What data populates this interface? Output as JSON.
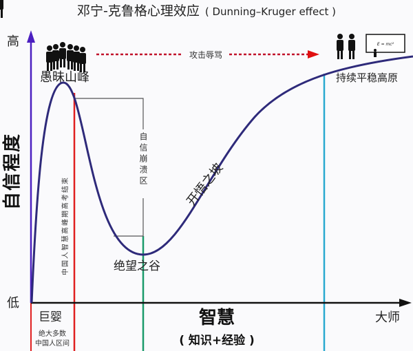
{
  "title": "邓宁-克鲁格心理效应",
  "title_en": "( Dunning–Kruger effect )",
  "y_axis": {
    "label": "自信程度",
    "high": "高",
    "low": "低"
  },
  "x_axis": {
    "label": "智慧",
    "sublabel": "( 知识+经验 )",
    "start": "巨婴",
    "end": "大师"
  },
  "stages": {
    "peak": "愚昧山峰",
    "valley": "绝望之谷",
    "slope": "开悟之坡",
    "plateau": "持续平稳高原"
  },
  "annotations": {
    "attack": "攻击辱骂",
    "collapse": "自信崩溃区",
    "red_line": "中国人智慧高峰期高考结束",
    "majority": [
      "绝大多数",
      "中国人区间"
    ],
    "formula": "E = mc²"
  },
  "colors": {
    "curve": "#2e2a7a",
    "y_axis": "#4b1fc0",
    "red_line": "#e02020",
    "green_line": "#1a9a6a",
    "cyan_line": "#29a9cf",
    "arrow_red": "#e01010"
  }
}
